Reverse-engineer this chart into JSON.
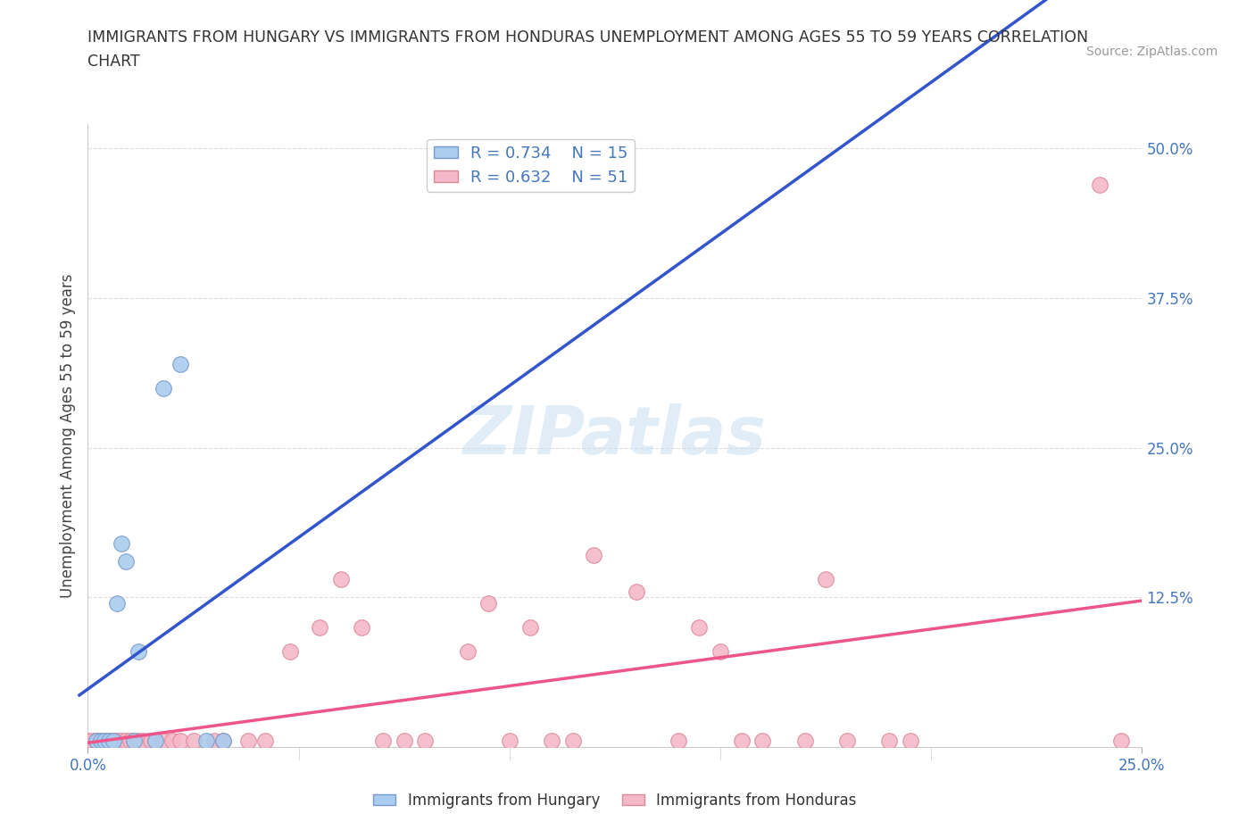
{
  "title_line1": "IMMIGRANTS FROM HUNGARY VS IMMIGRANTS FROM HONDURAS UNEMPLOYMENT AMONG AGES 55 TO 59 YEARS CORRELATION",
  "title_line2": "CHART",
  "source": "Source: ZipAtlas.com",
  "ylabel_label": "Unemployment Among Ages 55 to 59 years",
  "xlim": [
    0.0,
    0.25
  ],
  "ylim": [
    0.0,
    0.52
  ],
  "background_color": "#ffffff",
  "grid_color": "#dddddd",
  "hungary_color": "#aaccee",
  "hungary_edge_color": "#7799cc",
  "honduras_color": "#f5b8c8",
  "honduras_edge_color": "#dd8899",
  "hungary_R": 0.734,
  "hungary_N": 15,
  "honduras_R": 0.632,
  "honduras_N": 51,
  "hungary_line_color": "#3355cc",
  "honduras_line_color": "#ee5588",
  "hungary_x": [
    0.002,
    0.003,
    0.004,
    0.005,
    0.006,
    0.007,
    0.008,
    0.009,
    0.011,
    0.012,
    0.016,
    0.018,
    0.022,
    0.028,
    0.032
  ],
  "hungary_y": [
    0.005,
    0.005,
    0.005,
    0.005,
    0.005,
    0.12,
    0.17,
    0.155,
    0.005,
    0.08,
    0.005,
    0.3,
    0.32,
    0.005,
    0.005
  ],
  "honduras_x": [
    0.0,
    0.001,
    0.002,
    0.003,
    0.004,
    0.005,
    0.006,
    0.007,
    0.008,
    0.009,
    0.01,
    0.011,
    0.012,
    0.013,
    0.015,
    0.016,
    0.018,
    0.02,
    0.022,
    0.025,
    0.03,
    0.032,
    0.038,
    0.042,
    0.048,
    0.055,
    0.06,
    0.065,
    0.07,
    0.075,
    0.08,
    0.09,
    0.095,
    0.1,
    0.105,
    0.11,
    0.115,
    0.12,
    0.13,
    0.14,
    0.145,
    0.15,
    0.155,
    0.16,
    0.17,
    0.175,
    0.18,
    0.19,
    0.195,
    0.24,
    0.245
  ],
  "honduras_y": [
    0.005,
    0.005,
    0.005,
    0.005,
    0.005,
    0.005,
    0.005,
    0.005,
    0.005,
    0.005,
    0.005,
    0.005,
    0.005,
    0.005,
    0.005,
    0.005,
    0.005,
    0.005,
    0.005,
    0.005,
    0.005,
    0.005,
    0.005,
    0.005,
    0.08,
    0.1,
    0.14,
    0.1,
    0.005,
    0.005,
    0.005,
    0.08,
    0.12,
    0.005,
    0.1,
    0.005,
    0.005,
    0.16,
    0.13,
    0.005,
    0.1,
    0.08,
    0.005,
    0.005,
    0.005,
    0.14,
    0.005,
    0.005,
    0.005,
    0.47,
    0.005
  ]
}
